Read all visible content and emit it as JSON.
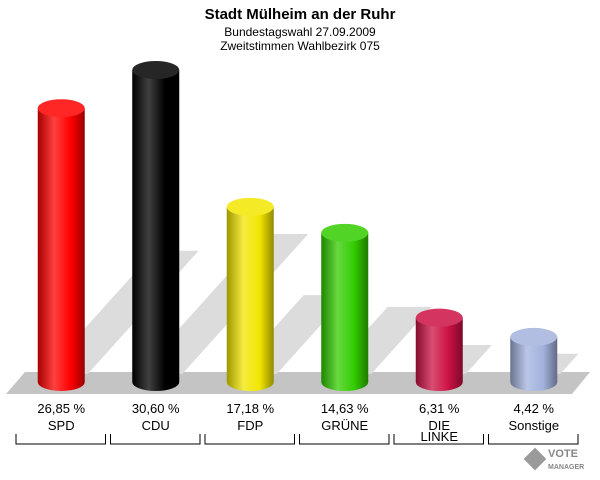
{
  "chart_data": {
    "type": "bar",
    "title": "Stadt Mülheim an der Ruhr",
    "subtitle_lines": [
      "Bundestagswahl 27.09.2009",
      "Zweitstimmen Wahlbezirk 075"
    ],
    "categories": [
      [
        "SPD"
      ],
      [
        "CDU"
      ],
      [
        "FDP"
      ],
      [
        "GRÜNE"
      ],
      [
        "DIE",
        "LINKE"
      ],
      [
        "Sonstige"
      ]
    ],
    "values": [
      26.85,
      30.6,
      17.18,
      14.63,
      6.31,
      4.42
    ],
    "value_labels": [
      "26,85 %",
      "30,60 %",
      "17,18 %",
      "14,63 %",
      "6,31 %",
      "4,42 %"
    ],
    "colors": [
      "#ff0000",
      "#000000",
      "#f2e600",
      "#33cc00",
      "#cc1144",
      "#a3b2dd"
    ],
    "ylim": [
      0,
      30.6
    ],
    "grid": false,
    "legend": "none"
  },
  "logo": {
    "line1": "VOTE",
    "line2": "MANAGER"
  }
}
